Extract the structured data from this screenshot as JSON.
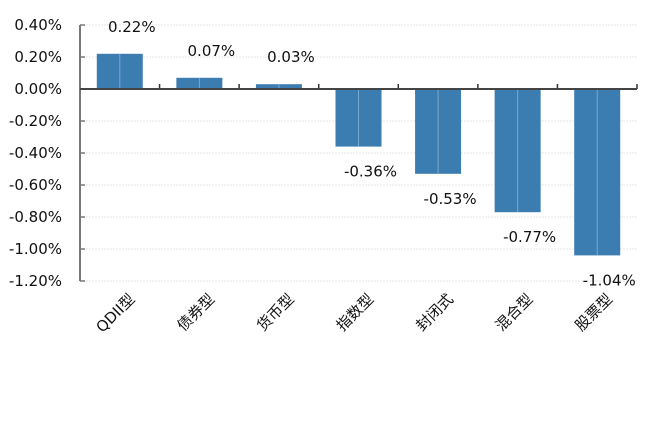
{
  "chart_data": {
    "type": "bar",
    "categories": [
      "QDII型",
      "债券型",
      "货币型",
      "指数型",
      "封闭式",
      "混合型",
      "股票型"
    ],
    "values": [
      0.22,
      0.07,
      0.03,
      -0.36,
      -0.53,
      -0.77,
      -1.04
    ],
    "data_labels": [
      "0.22%",
      "0.07%",
      "0.03%",
      "-0.36%",
      "-0.53%",
      "-0.77%",
      "-1.04%"
    ],
    "title": "",
    "xlabel": "",
    "ylabel": "",
    "ylim": [
      -1.2,
      0.4
    ],
    "yticks": [
      0.4,
      0.2,
      0.0,
      -0.2,
      -0.4,
      -0.6,
      -0.8,
      -1.0,
      -1.2
    ],
    "ytick_labels": [
      "0.40%",
      "0.20%",
      "0.00%",
      "-0.20%",
      "-0.40%",
      "-0.60%",
      "-0.80%",
      "-1.00%",
      "-1.20%"
    ],
    "grid": true,
    "legend": "none",
    "bar_color": "#3c7db1",
    "grid_color": "#e4e4e4",
    "axis_color": "#777777"
  }
}
